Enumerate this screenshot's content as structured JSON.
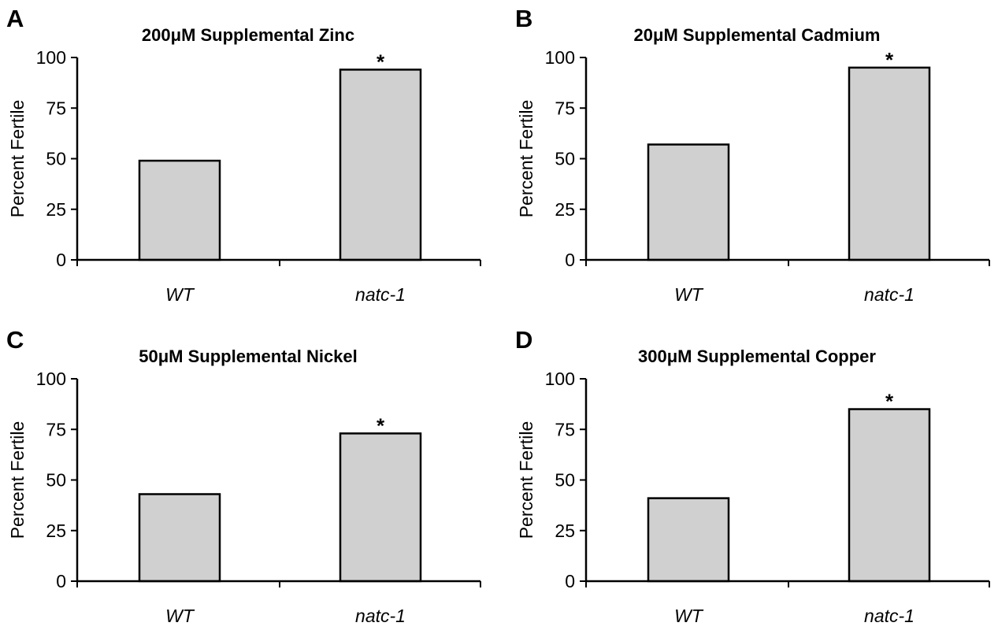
{
  "colors": {
    "bar_fill": "#d0d0d0",
    "bar_stroke": "#000000",
    "axis": "#000000"
  },
  "chart_data": [
    {
      "panel": "A",
      "type": "bar",
      "title": "200μM Supplemental Zinc",
      "ylabel": "Percent Fertile",
      "xlabel": "",
      "ylim": [
        0,
        100
      ],
      "yticks": [
        0,
        25,
        50,
        75,
        100
      ],
      "categories": [
        "WT",
        "natc-1"
      ],
      "values": [
        49,
        94
      ],
      "annotations": [
        "",
        "*"
      ],
      "grid": false
    },
    {
      "panel": "B",
      "type": "bar",
      "title": "20μM Supplemental Cadmium",
      "ylabel": "Percent Fertile",
      "xlabel": "",
      "ylim": [
        0,
        100
      ],
      "yticks": [
        0,
        25,
        50,
        75,
        100
      ],
      "categories": [
        "WT",
        "natc-1"
      ],
      "values": [
        57,
        95
      ],
      "annotations": [
        "",
        "*"
      ],
      "grid": false
    },
    {
      "panel": "C",
      "type": "bar",
      "title": "50μM Supplemental Nickel",
      "ylabel": "Percent Fertile",
      "xlabel": "",
      "ylim": [
        0,
        100
      ],
      "yticks": [
        0,
        25,
        50,
        75,
        100
      ],
      "categories": [
        "WT",
        "natc-1"
      ],
      "values": [
        43,
        73
      ],
      "annotations": [
        "",
        "*"
      ],
      "grid": false
    },
    {
      "panel": "D",
      "type": "bar",
      "title": "300μM Supplemental Copper",
      "ylabel": "Percent Fertile",
      "xlabel": "",
      "ylim": [
        0,
        100
      ],
      "yticks": [
        0,
        25,
        50,
        75,
        100
      ],
      "categories": [
        "WT",
        "natc-1"
      ],
      "values": [
        41,
        85
      ],
      "annotations": [
        "",
        "*"
      ],
      "grid": false
    }
  ]
}
